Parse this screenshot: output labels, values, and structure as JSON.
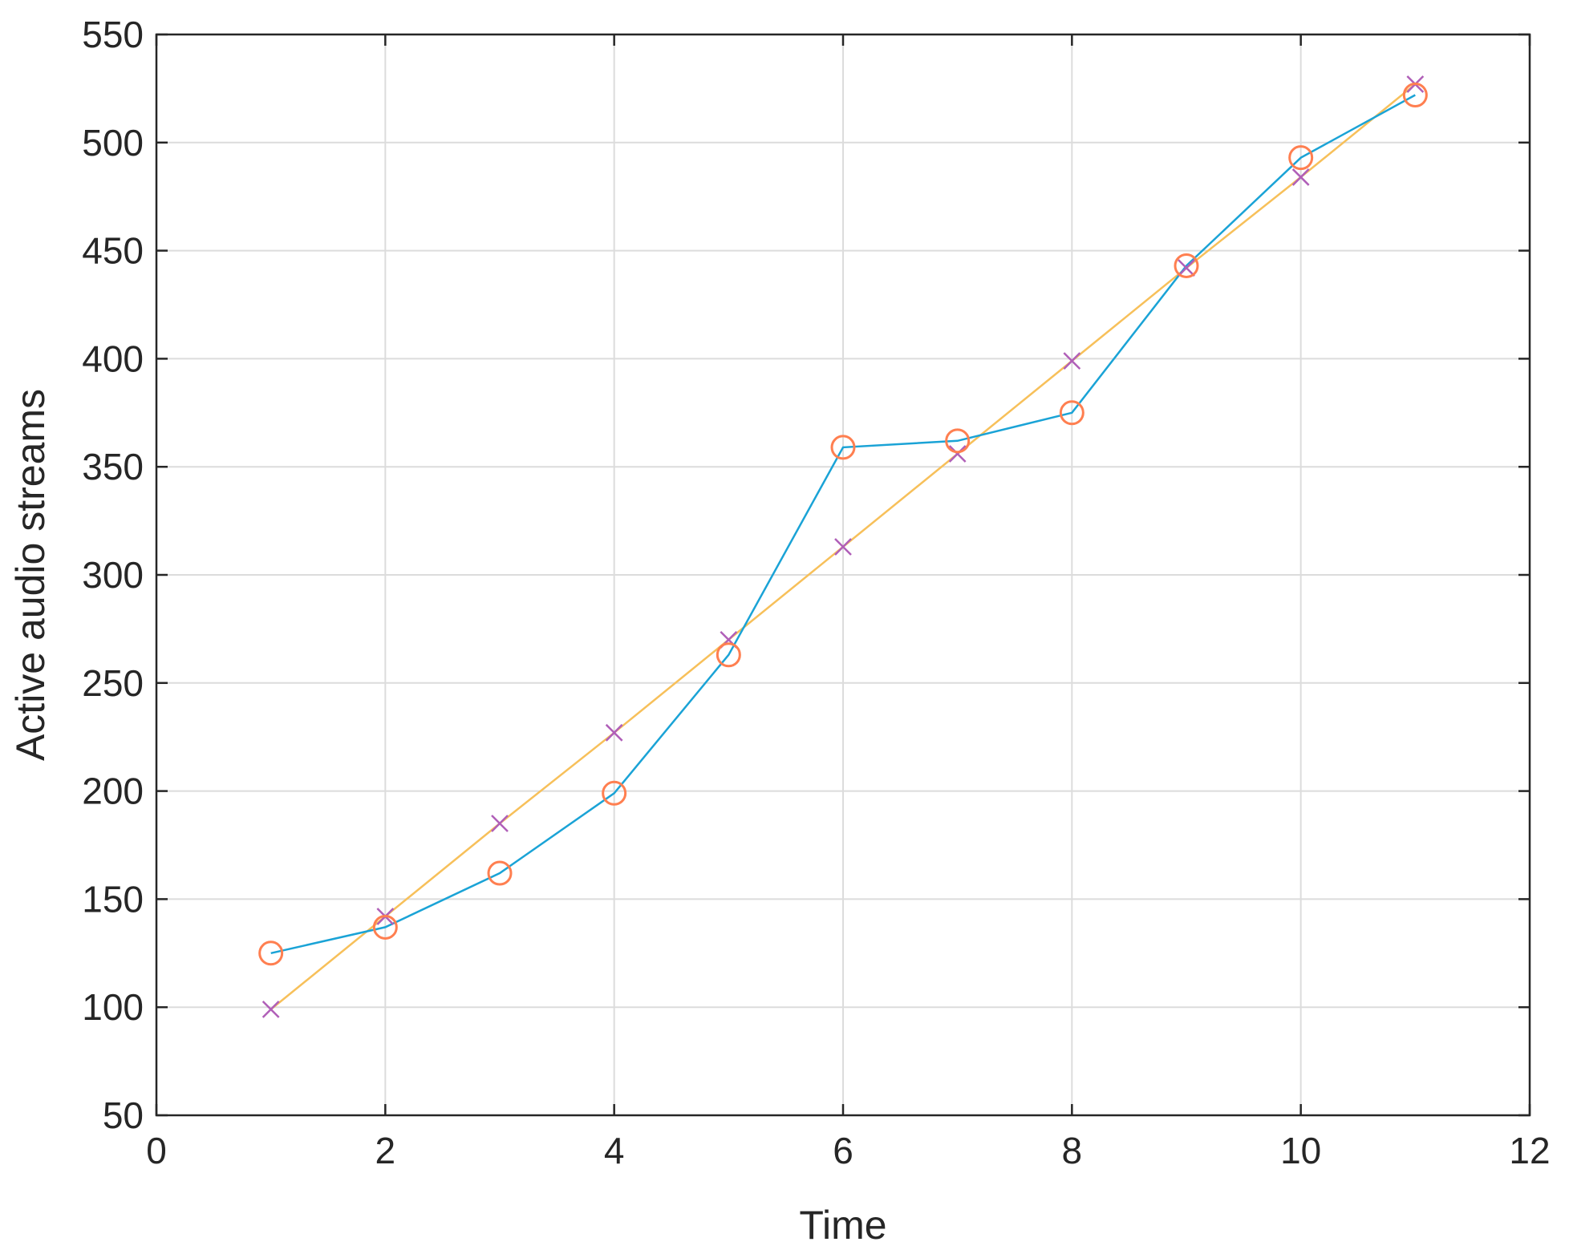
{
  "chart_data": {
    "type": "line",
    "xlabel": "Time",
    "ylabel": "Active audio streams",
    "xlim": [
      0,
      12
    ],
    "ylim": [
      50,
      550
    ],
    "xticks": [
      0,
      2,
      4,
      6,
      8,
      10,
      12
    ],
    "yticks": [
      50,
      100,
      150,
      200,
      250,
      300,
      350,
      400,
      450,
      500,
      550
    ],
    "grid": true,
    "legend": "none",
    "series": [
      {
        "x": [
          1,
          2,
          3,
          4,
          5,
          6,
          7,
          8,
          9,
          10,
          11
        ],
        "values": [
          125,
          137,
          162,
          199,
          263,
          359,
          362,
          375,
          443,
          493,
          522
        ],
        "line_color": "#1aa3d6",
        "marker": "circle",
        "marker_color": "#ff7f50"
      },
      {
        "x": [
          1,
          2,
          3,
          4,
          5,
          6,
          7,
          8,
          9,
          10,
          11
        ],
        "values": [
          99,
          142,
          185,
          227,
          270,
          313,
          356,
          399,
          442,
          484,
          527
        ],
        "line_color": "#f7c05a",
        "marker": "x",
        "marker_color": "#b05fb8"
      }
    ]
  }
}
